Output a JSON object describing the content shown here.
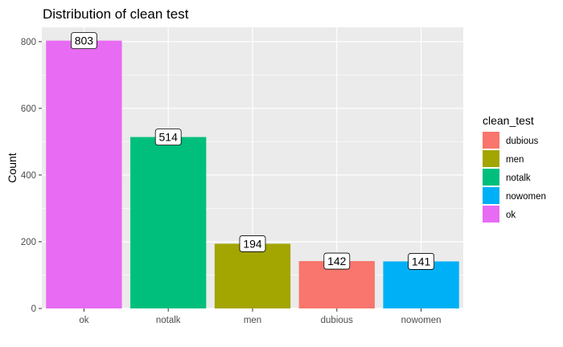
{
  "chart_data": {
    "type": "bar",
    "title": "Distribution of clean test",
    "xlabel": "",
    "ylabel": "Count",
    "categories": [
      "ok",
      "notalk",
      "men",
      "dubious",
      "nowomen"
    ],
    "values": [
      803,
      514,
      194,
      142,
      141
    ],
    "data_labels": [
      "803",
      "514",
      "194",
      "142",
      "141"
    ],
    "bar_colors": [
      "#E76BF3",
      "#00BF7D",
      "#A3A500",
      "#F8766D",
      "#00B0F6"
    ],
    "ylim": [
      0,
      843
    ],
    "y_ticks": [
      0,
      200,
      400,
      600,
      800
    ],
    "y_tick_labels": [
      "0",
      "200",
      "400",
      "600",
      "800"
    ],
    "grid": true,
    "panel_background": "#EBEBEB",
    "grid_color": "#FFFFFF",
    "legend": {
      "title": "clean_test",
      "position": "right",
      "entries": [
        {
          "label": "dubious",
          "color": "#F8766D"
        },
        {
          "label": "men",
          "color": "#A3A500"
        },
        {
          "label": "notalk",
          "color": "#00BF7D"
        },
        {
          "label": "nowomen",
          "color": "#00B0F6"
        },
        {
          "label": "ok",
          "color": "#E76BF3"
        }
      ]
    }
  }
}
